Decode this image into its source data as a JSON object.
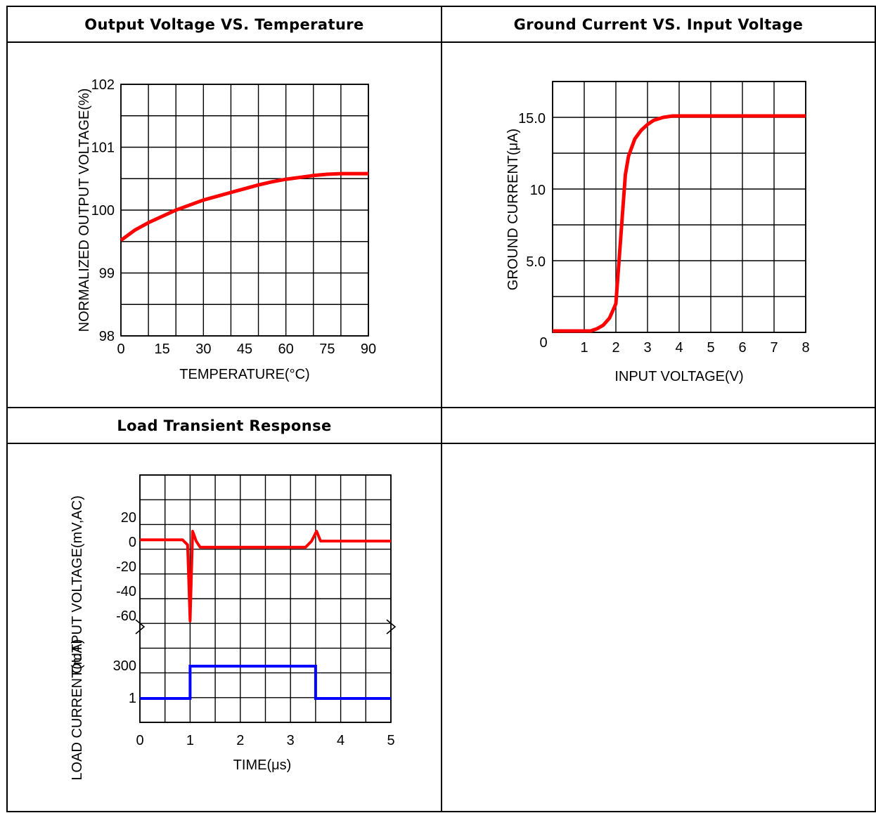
{
  "headers": {
    "top_left": "Output Voltage VS. Temperature",
    "top_right": "Ground Current VS. Input Voltage",
    "bottom_left": "Load Transient Response",
    "bottom_right": ""
  },
  "colors": {
    "curve": "#ff0000",
    "current_trace": "#0000ff",
    "grid": "#000000"
  },
  "chart_data": [
    {
      "type": "line",
      "title": "Output Voltage VS. Temperature",
      "xlabel": "TEMPERATURE(°C)",
      "ylabel": "NORMALIZED OUTPUT VOLTAGE(%)",
      "xlim": [
        0,
        90
      ],
      "ylim": [
        98,
        102
      ],
      "x_ticks": [
        "0",
        "15",
        "30",
        "45",
        "60",
        "75",
        "90"
      ],
      "y_ticks": [
        "98",
        "99",
        "100",
        "101",
        "102"
      ],
      "grid": true,
      "series": [
        {
          "x": [
            0,
            5,
            10,
            15,
            20,
            25,
            30,
            35,
            40,
            45,
            50,
            55,
            60,
            65,
            70,
            75,
            80,
            85,
            90
          ],
          "y": [
            99.52,
            99.68,
            99.8,
            99.9,
            100.0,
            100.08,
            100.16,
            100.22,
            100.28,
            100.34,
            100.4,
            100.45,
            100.49,
            100.52,
            100.55,
            100.57,
            100.58,
            100.58,
            100.58
          ]
        }
      ]
    },
    {
      "type": "line",
      "title": "Ground Current VS. Input Voltage",
      "xlabel": "INPUT VOLTAGE(V)",
      "ylabel": "GROUND CURRENT(μA)",
      "xlim": [
        0,
        8
      ],
      "ylim": [
        0,
        17.5
      ],
      "x_ticks": [
        "0",
        "1",
        "2",
        "3",
        "4",
        "5",
        "6",
        "7",
        "8"
      ],
      "y_ticks": [
        "5.0",
        "10",
        "15.0"
      ],
      "grid": true,
      "series": [
        {
          "x": [
            0,
            1.2,
            1.4,
            1.6,
            1.8,
            2.0,
            2.1,
            2.2,
            2.3,
            2.4,
            2.6,
            2.8,
            3.0,
            3.2,
            3.5,
            3.8,
            4.0,
            5,
            6,
            7,
            8
          ],
          "y": [
            0.1,
            0.1,
            0.25,
            0.5,
            1.0,
            2.0,
            5.0,
            8.0,
            11.0,
            12.3,
            13.5,
            14.1,
            14.5,
            14.8,
            15.0,
            15.1,
            15.1,
            15.1,
            15.1,
            15.1,
            15.1
          ]
        }
      ]
    },
    {
      "type": "line",
      "title": "Load Transient Response",
      "xlabel": "TIME(μs)",
      "x_ticks": [
        "0",
        "1",
        "2",
        "3",
        "4",
        "5"
      ],
      "xlim": [
        0,
        5
      ],
      "grid": true,
      "panels": [
        {
          "ylabel": "OUTPUT VOLTAGE(mV,AC)",
          "y_ticks": [
            "20",
            "0",
            "-20",
            "-40",
            "-60"
          ],
          "ylim": [
            -60,
            20
          ],
          "series": [
            {
              "x": [
                0,
                0.85,
                0.95,
                1.0,
                1.05,
                1.12,
                1.2,
                1.3,
                1.4,
                2.0,
                3.0,
                3.3,
                3.42,
                3.52,
                3.6,
                4.0,
                5.0
              ],
              "y": [
                1,
                1,
                -3,
                -65,
                8,
                0,
                -5,
                -5,
                -5,
                -5,
                -5,
                -5,
                0,
                8,
                0,
                0,
                0
              ]
            }
          ]
        },
        {
          "ylabel": "LOAD CURRENT(mA)",
          "y_ticks": [
            "300",
            "1"
          ],
          "series": [
            {
              "x": [
                0,
                1,
                1,
                3.5,
                3.5,
                5
              ],
              "level": [
                "1",
                "1",
                "300",
                "300",
                "1",
                "1"
              ]
            }
          ]
        }
      ]
    }
  ]
}
